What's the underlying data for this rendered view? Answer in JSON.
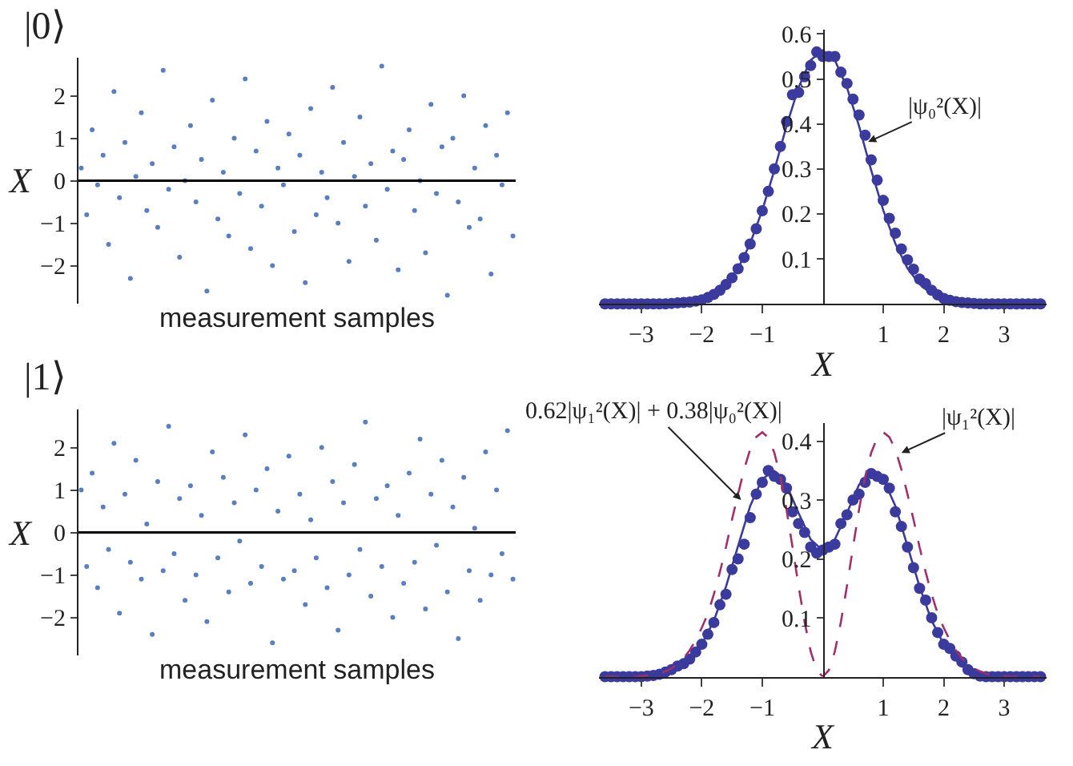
{
  "chart_data": [
    {
      "type": "scatter",
      "title": "|0⟩",
      "xlabel": "measurement samples",
      "ylabel": "X",
      "tick_labels": "y",
      "marker": "circle",
      "ylim": [
        -2.9,
        2.9
      ],
      "yticks": [
        -2,
        -1,
        0,
        1,
        2
      ],
      "categories": [
        null,
        null,
        null,
        null,
        null,
        null,
        null,
        null,
        null,
        null,
        null,
        null,
        null,
        null,
        null,
        null,
        null,
        null,
        null,
        null,
        null,
        null,
        null,
        null,
        null,
        null,
        null,
        null,
        null,
        null,
        null,
        null,
        null,
        null,
        null,
        null,
        null,
        null,
        null,
        null,
        null,
        null,
        null,
        null,
        null,
        null,
        null,
        null,
        null,
        null,
        null,
        null,
        null,
        null,
        null,
        null,
        null,
        null,
        null,
        null,
        null,
        null,
        null,
        null,
        null,
        null,
        null,
        null,
        null,
        null,
        null,
        null,
        null,
        null,
        null,
        null,
        null,
        null,
        null,
        null
      ],
      "series": [
        {
          "color": "#5a7fc0",
          "values": [
            0.3,
            -0.8,
            1.2,
            -0.1,
            0.6,
            -1.5,
            2.1,
            -0.4,
            0.9,
            -2.3,
            0.1,
            1.6,
            -0.7,
            0.4,
            -1.1,
            2.6,
            -0.2,
            0.8,
            -1.8,
            0.0,
            1.3,
            -0.5,
            0.5,
            -2.6,
            1.9,
            -0.9,
            0.2,
            -1.3,
            1.0,
            -0.3,
            2.4,
            -1.6,
            0.7,
            -0.6,
            1.4,
            -2.0,
            0.3,
            -0.1,
            1.1,
            -1.2,
            0.6,
            -2.4,
            1.7,
            -0.8,
            0.2,
            -0.4,
            2.2,
            -1.0,
            0.9,
            -1.9,
            0.1,
            1.5,
            -0.6,
            0.4,
            -1.4,
            2.7,
            -0.2,
            0.7,
            -2.1,
            0.5,
            1.2,
            -0.7,
            0.0,
            -1.7,
            1.8,
            -0.3,
            0.8,
            -2.7,
            1.0,
            -0.5,
            2.0,
            -1.1,
            0.3,
            -0.9,
            1.3,
            -2.2,
            0.6,
            -0.1,
            1.6,
            -1.3
          ]
        }
      ],
      "ref_lines": [
        {
          "axis": "y",
          "value": 0,
          "color": "#000000"
        }
      ]
    },
    {
      "type": "scatter",
      "xlabel": "X",
      "xlim": [
        -3.7,
        3.7
      ],
      "xticks": [
        -3,
        -2,
        -1,
        1,
        2,
        3
      ],
      "ylim": [
        0,
        0.61
      ],
      "yticks": [
        0.1,
        0.2,
        0.3,
        0.4,
        0.5,
        0.6
      ],
      "annotations": [
        {
          "text": "|ψ₀²(X)|",
          "x": 0.75,
          "y": 0.36
        }
      ],
      "series": [
        {
          "type": "scatter",
          "marker": "circle",
          "color": "#3b3b9e",
          "x": [
            -3.6,
            -3.5,
            -3.4,
            -3.3,
            -3.2,
            -3.1,
            -3.0,
            -2.9,
            -2.8,
            -2.7,
            -2.6,
            -2.5,
            -2.4,
            -2.3,
            -2.2,
            -2.1,
            -2.0,
            -1.9,
            -1.8,
            -1.7,
            -1.6,
            -1.5,
            -1.4,
            -1.3,
            -1.2,
            -1.1,
            -1.0,
            -0.9,
            -0.8,
            -0.7,
            -0.6,
            -0.5,
            -0.4,
            -0.3,
            -0.2,
            -0.1,
            0,
            0.1,
            0.2,
            0.3,
            0.4,
            0.5,
            0.6,
            0.7,
            0.8,
            0.9,
            1.0,
            1.1,
            1.2,
            1.3,
            1.4,
            1.5,
            1.6,
            1.7,
            1.8,
            1.9,
            2.0,
            2.1,
            2.2,
            2.3,
            2.4,
            2.5,
            2.6,
            2.7,
            2.8,
            2.9,
            3.0,
            3.1,
            3.2,
            3.3,
            3.4,
            3.5,
            3.6
          ],
          "values": [
            0,
            0,
            0,
            0,
            0,
            0,
            0,
            0,
            0,
            0,
            0,
            0.001,
            0.002,
            0.003,
            0.004,
            0.006,
            0.009,
            0.014,
            0.021,
            0.03,
            0.043,
            0.058,
            0.078,
            0.103,
            0.133,
            0.167,
            0.207,
            0.25,
            0.3,
            0.35,
            0.405,
            0.465,
            0.47,
            0.505,
            0.53,
            0.56,
            0.55,
            0.55,
            0.55,
            0.515,
            0.49,
            0.455,
            0.42,
            0.375,
            0.32,
            0.275,
            0.23,
            0.19,
            0.157,
            0.122,
            0.098,
            0.077,
            0.055,
            0.045,
            0.03,
            0.02,
            0.012,
            0.008,
            0.005,
            0.003,
            0.002,
            0.001,
            0,
            0,
            0,
            0,
            0,
            0,
            0,
            0,
            0,
            0,
            0
          ]
        },
        {
          "type": "line",
          "marker": "none",
          "line_style": "solid",
          "color": "#3b3b9e",
          "x": [
            -3.6,
            -3.4,
            -3.2,
            -3.0,
            -2.8,
            -2.6,
            -2.4,
            -2.2,
            -2.0,
            -1.8,
            -1.6,
            -1.4,
            -1.2,
            -1.0,
            -0.8,
            -0.6,
            -0.4,
            -0.2,
            0,
            0.2,
            0.4,
            0.6,
            0.8,
            1.0,
            1.2,
            1.4,
            1.6,
            1.8,
            2.0,
            2.2,
            2.4,
            2.6,
            2.8,
            3.0,
            3.2,
            3.4,
            3.6
          ],
          "values": [
            0,
            0,
            0,
            0,
            0,
            0,
            0.002,
            0.004,
            0.01,
            0.022,
            0.044,
            0.079,
            0.134,
            0.208,
            0.297,
            0.395,
            0.481,
            0.542,
            0.564,
            0.542,
            0.481,
            0.395,
            0.297,
            0.208,
            0.134,
            0.079,
            0.044,
            0.022,
            0.01,
            0.004,
            0.002,
            0,
            0,
            0,
            0,
            0,
            0
          ]
        }
      ]
    },
    {
      "type": "scatter",
      "title": "|1⟩",
      "xlabel": "measurement samples",
      "ylabel": "X",
      "tick_labels": "y",
      "marker": "circle",
      "ylim": [
        -2.9,
        2.9
      ],
      "yticks": [
        -2,
        -1,
        0,
        1,
        2
      ],
      "categories": [
        null,
        null,
        null,
        null,
        null,
        null,
        null,
        null,
        null,
        null,
        null,
        null,
        null,
        null,
        null,
        null,
        null,
        null,
        null,
        null,
        null,
        null,
        null,
        null,
        null,
        null,
        null,
        null,
        null,
        null,
        null,
        null,
        null,
        null,
        null,
        null,
        null,
        null,
        null,
        null,
        null,
        null,
        null,
        null,
        null,
        null,
        null,
        null,
        null,
        null,
        null,
        null,
        null,
        null,
        null,
        null,
        null,
        null,
        null,
        null,
        null,
        null,
        null,
        null,
        null,
        null,
        null,
        null,
        null,
        null,
        null,
        null,
        null,
        null,
        null,
        null,
        null,
        null,
        null,
        null
      ],
      "series": [
        {
          "color": "#5a7fc0",
          "values": [
            1.0,
            -0.8,
            1.4,
            -1.3,
            0.6,
            -0.4,
            2.1,
            -1.9,
            0.9,
            -0.7,
            1.7,
            -1.1,
            0.2,
            -2.4,
            1.2,
            -0.9,
            2.5,
            -0.5,
            0.8,
            -1.6,
            1.1,
            -1.0,
            0.4,
            -2.1,
            1.9,
            -0.6,
            1.3,
            -1.4,
            0.7,
            -0.2,
            2.3,
            -1.2,
            1.0,
            -0.8,
            1.5,
            -2.6,
            0.5,
            -1.1,
            1.8,
            -0.9,
            0.9,
            -1.7,
            0.3,
            -0.6,
            2.0,
            -1.3,
            1.2,
            -2.3,
            0.7,
            -1.0,
            1.6,
            -0.4,
            2.6,
            -1.5,
            0.8,
            -0.8,
            1.1,
            -2.0,
            0.4,
            -1.2,
            1.4,
            -0.7,
            2.2,
            -1.8,
            0.9,
            -0.3,
            1.7,
            -1.4,
            0.6,
            -2.5,
            1.3,
            -0.9,
            0.1,
            -1.6,
            1.9,
            -1.0,
            1.0,
            -0.5,
            2.4,
            -1.1
          ]
        }
      ],
      "ref_lines": [
        {
          "axis": "y",
          "value": 0,
          "color": "#000000"
        }
      ]
    },
    {
      "type": "scatter",
      "xlabel": "X",
      "xlim": [
        -3.7,
        3.7
      ],
      "xticks": [
        -3,
        -2,
        -1,
        1,
        2,
        3
      ],
      "ylim": [
        0,
        0.43
      ],
      "yticks": [
        0.1,
        0.2,
        0.3,
        0.4
      ],
      "annotations": [
        {
          "text": "0.62|ψ₁²(X)| + 0.38|ψ₀²(X)|",
          "x": -1.35,
          "y": 0.3
        },
        {
          "text": "|ψ₁²(X)|",
          "x": 1.3,
          "y": 0.38
        }
      ],
      "series": [
        {
          "type": "scatter",
          "marker": "circle",
          "color": "#3b3b9e",
          "x": [
            -3.6,
            -3.5,
            -3.4,
            -3.3,
            -3.2,
            -3.1,
            -3.0,
            -2.9,
            -2.8,
            -2.7,
            -2.6,
            -2.5,
            -2.4,
            -2.3,
            -2.2,
            -2.1,
            -2.0,
            -1.9,
            -1.8,
            -1.7,
            -1.6,
            -1.5,
            -1.4,
            -1.3,
            -1.2,
            -1.1,
            -1.0,
            -0.9,
            -0.8,
            -0.7,
            -0.6,
            -0.5,
            -0.4,
            -0.3,
            -0.2,
            -0.1,
            0,
            0.1,
            0.2,
            0.3,
            0.4,
            0.5,
            0.6,
            0.7,
            0.8,
            0.9,
            1.0,
            1.1,
            1.2,
            1.3,
            1.4,
            1.5,
            1.6,
            1.7,
            1.8,
            1.9,
            2.0,
            2.1,
            2.2,
            2.3,
            2.4,
            2.5,
            2.6,
            2.7,
            2.8,
            2.9,
            3.0,
            3.1,
            3.2,
            3.3,
            3.4,
            3.5,
            3.6
          ],
          "values": [
            0,
            0,
            0,
            0,
            0,
            0,
            0,
            0.001,
            0.002,
            0.004,
            0.008,
            0.012,
            0.018,
            0.022,
            0.03,
            0.042,
            0.055,
            0.072,
            0.092,
            0.122,
            0.14,
            0.182,
            0.2,
            0.225,
            0.27,
            0.31,
            0.33,
            0.35,
            0.34,
            0.335,
            0.32,
            0.28,
            0.26,
            0.245,
            0.22,
            0.21,
            0.215,
            0.22,
            0.225,
            0.26,
            0.275,
            0.3,
            0.31,
            0.33,
            0.345,
            0.34,
            0.335,
            0.32,
            0.28,
            0.255,
            0.22,
            0.185,
            0.15,
            0.13,
            0.1,
            0.075,
            0.055,
            0.048,
            0.035,
            0.025,
            0.012,
            0.005,
            0.001,
            0,
            0,
            0,
            0,
            0,
            0,
            0,
            0,
            0,
            0
          ]
        },
        {
          "type": "line",
          "marker": "none",
          "line_style": "solid",
          "color": "#3b3b9e",
          "x": [
            -3.6,
            -3.4,
            -3.2,
            -3.0,
            -2.8,
            -2.6,
            -2.4,
            -2.2,
            -2.0,
            -1.8,
            -1.6,
            -1.4,
            -1.2,
            -1.0,
            -0.8,
            -0.6,
            -0.4,
            -0.2,
            0,
            0.2,
            0.4,
            0.6,
            0.8,
            1.0,
            1.2,
            1.4,
            1.6,
            1.8,
            2.0,
            2.2,
            2.4,
            2.6,
            2.8,
            3.0,
            3.2,
            3.4,
            3.6
          ],
          "values": [
            0,
            0,
            0,
            0,
            0.002,
            0.005,
            0.014,
            0.03,
            0.055,
            0.095,
            0.153,
            0.222,
            0.29,
            0.336,
            0.349,
            0.326,
            0.278,
            0.233,
            0.214,
            0.233,
            0.278,
            0.326,
            0.349,
            0.336,
            0.29,
            0.222,
            0.153,
            0.095,
            0.055,
            0.03,
            0.014,
            0.005,
            0.002,
            0,
            0,
            0,
            0
          ]
        },
        {
          "type": "line",
          "marker": "none",
          "line_style": "dashed",
          "color": "#a0306a",
          "x": [
            -3.6,
            -3.5,
            -3.4,
            -3.3,
            -3.2,
            -3.1,
            -3.0,
            -2.9,
            -2.8,
            -2.7,
            -2.6,
            -2.5,
            -2.4,
            -2.3,
            -2.2,
            -2.1,
            -2.0,
            -1.9,
            -1.8,
            -1.7,
            -1.6,
            -1.5,
            -1.4,
            -1.3,
            -1.2,
            -1.1,
            -1.0,
            -0.9,
            -0.8,
            -0.7,
            -0.6,
            -0.5,
            -0.4,
            -0.3,
            -0.2,
            -0.1,
            0,
            0.1,
            0.2,
            0.3,
            0.4,
            0.5,
            0.6,
            0.7,
            0.8,
            0.9,
            1.0,
            1.1,
            1.2,
            1.3,
            1.4,
            1.5,
            1.6,
            1.7,
            1.8,
            1.9,
            2.0,
            2.1,
            2.2,
            2.3,
            2.4,
            2.5,
            2.6,
            2.7,
            2.8,
            2.9,
            3.0,
            3.1,
            3.2,
            3.3,
            3.4,
            3.5,
            3.6
          ],
          "values": [
            0,
            0,
            0,
            0,
            0,
            0,
            0.001,
            0.002,
            0.003,
            0.005,
            0.009,
            0.014,
            0.022,
            0.031,
            0.045,
            0.062,
            0.083,
            0.107,
            0.14,
            0.178,
            0.22,
            0.267,
            0.31,
            0.352,
            0.386,
            0.407,
            0.415,
            0.406,
            0.38,
            0.339,
            0.284,
            0.22,
            0.154,
            0.093,
            0.043,
            0.011,
            0,
            0.011,
            0.043,
            0.093,
            0.154,
            0.22,
            0.284,
            0.339,
            0.38,
            0.406,
            0.415,
            0.407,
            0.386,
            0.352,
            0.31,
            0.267,
            0.22,
            0.178,
            0.14,
            0.107,
            0.083,
            0.062,
            0.045,
            0.031,
            0.022,
            0.014,
            0.009,
            0.005,
            0.003,
            0.002,
            0.001,
            0,
            0,
            0,
            0,
            0,
            0
          ]
        }
      ]
    }
  ]
}
